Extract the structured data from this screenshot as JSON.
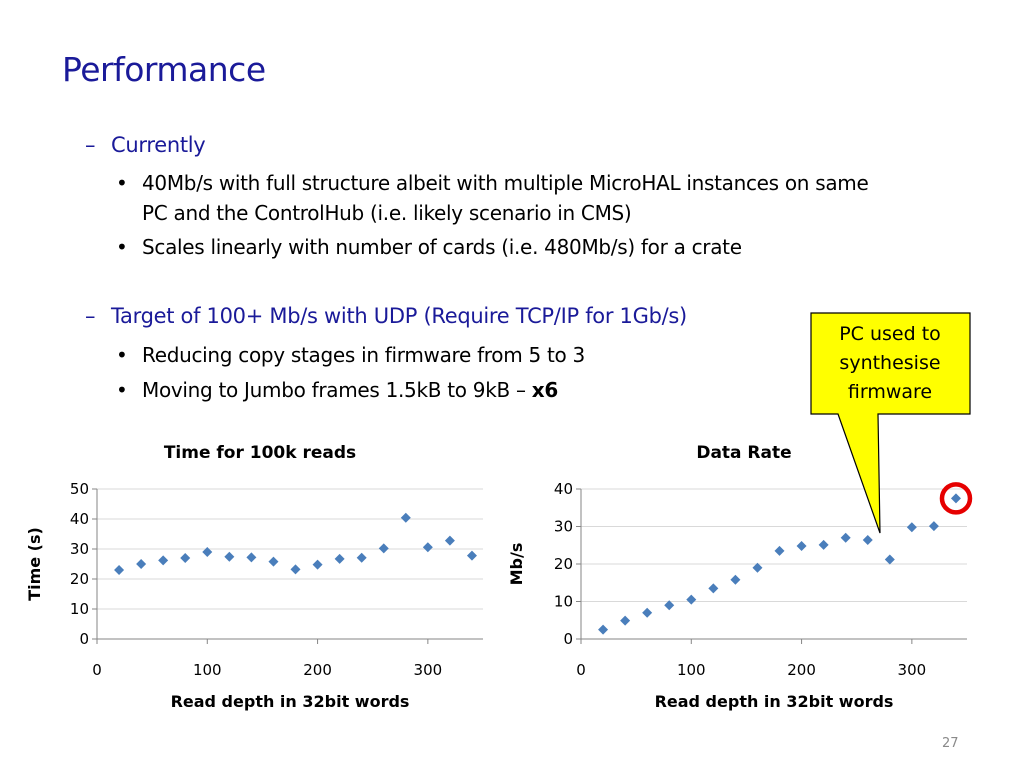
{
  "slide": {
    "title": "Performance",
    "page_number": "27"
  },
  "bullets": {
    "currently": {
      "dash": "–",
      "heading": "Currently",
      "items": [
        {
          "bullet": "•",
          "lines": [
            "40Mb/s with full structure albeit with multiple MicroHAL instances on same",
            "PC and the ControlHub (i.e. likely scenario in CMS)"
          ]
        },
        {
          "bullet": "•",
          "lines": [
            "Scales linearly with number of cards (i.e. 480Mb/s) for a crate"
          ]
        }
      ]
    },
    "target": {
      "dash": "–",
      "heading": "Target of 100+ Mb/s with UDP (Require TCP/IP for 1Gb/s)",
      "items": [
        {
          "bullet": "•",
          "text": "Reducing copy stages in firmware from 5 to 3"
        },
        {
          "bullet": "•",
          "text": "Moving to Jumbo frames 1.5kB to 9kB – ",
          "bold_suffix": "x6"
        }
      ]
    }
  },
  "callout": {
    "lines": [
      "PC used to",
      "synthesise",
      "firmware"
    ],
    "fill_color": "#ffff00",
    "highlight_color": "#e60000"
  },
  "colors": {
    "title": "#1a1a99",
    "marker": "#4a7ebb",
    "grid": "#d9d9d9",
    "axis": "#868686"
  },
  "chart_data": [
    {
      "type": "scatter",
      "title": "Time for 100k reads",
      "xlabel": "Read depth in 32bit words",
      "ylabel": "Time (s)",
      "xlim": [
        0,
        350
      ],
      "ylim": [
        0,
        50
      ],
      "xticks": [
        0,
        100,
        200,
        300
      ],
      "yticks": [
        0,
        10,
        20,
        30,
        40,
        50
      ],
      "grid": true,
      "marker": "diamond",
      "x": [
        20,
        40,
        60,
        80,
        100,
        120,
        140,
        160,
        180,
        200,
        220,
        240,
        260,
        280,
        300,
        320,
        340
      ],
      "y": [
        23,
        25,
        26.2,
        27,
        29,
        27.4,
        27.2,
        25.8,
        23.2,
        24.8,
        26.7,
        27.1,
        30.2,
        40.4,
        30.6,
        32.8,
        27.8
      ]
    },
    {
      "type": "scatter",
      "title": "Data Rate",
      "xlabel": "Read depth in 32bit words",
      "ylabel": "Mb/s",
      "xlim": [
        0,
        350
      ],
      "ylim": [
        0,
        40
      ],
      "xticks": [
        0,
        100,
        200,
        300
      ],
      "yticks": [
        0,
        10,
        20,
        30,
        40
      ],
      "grid": true,
      "marker": "diamond",
      "x": [
        20,
        40,
        60,
        80,
        100,
        120,
        140,
        160,
        180,
        200,
        220,
        240,
        260,
        280,
        300,
        320,
        340
      ],
      "y": [
        2.5,
        4.9,
        7,
        9,
        10.5,
        13.5,
        15.8,
        19,
        23.5,
        24.8,
        25.1,
        27,
        26.4,
        21.2,
        29.8,
        30.1,
        37.5
      ],
      "highlighted_point_index": 16
    }
  ]
}
